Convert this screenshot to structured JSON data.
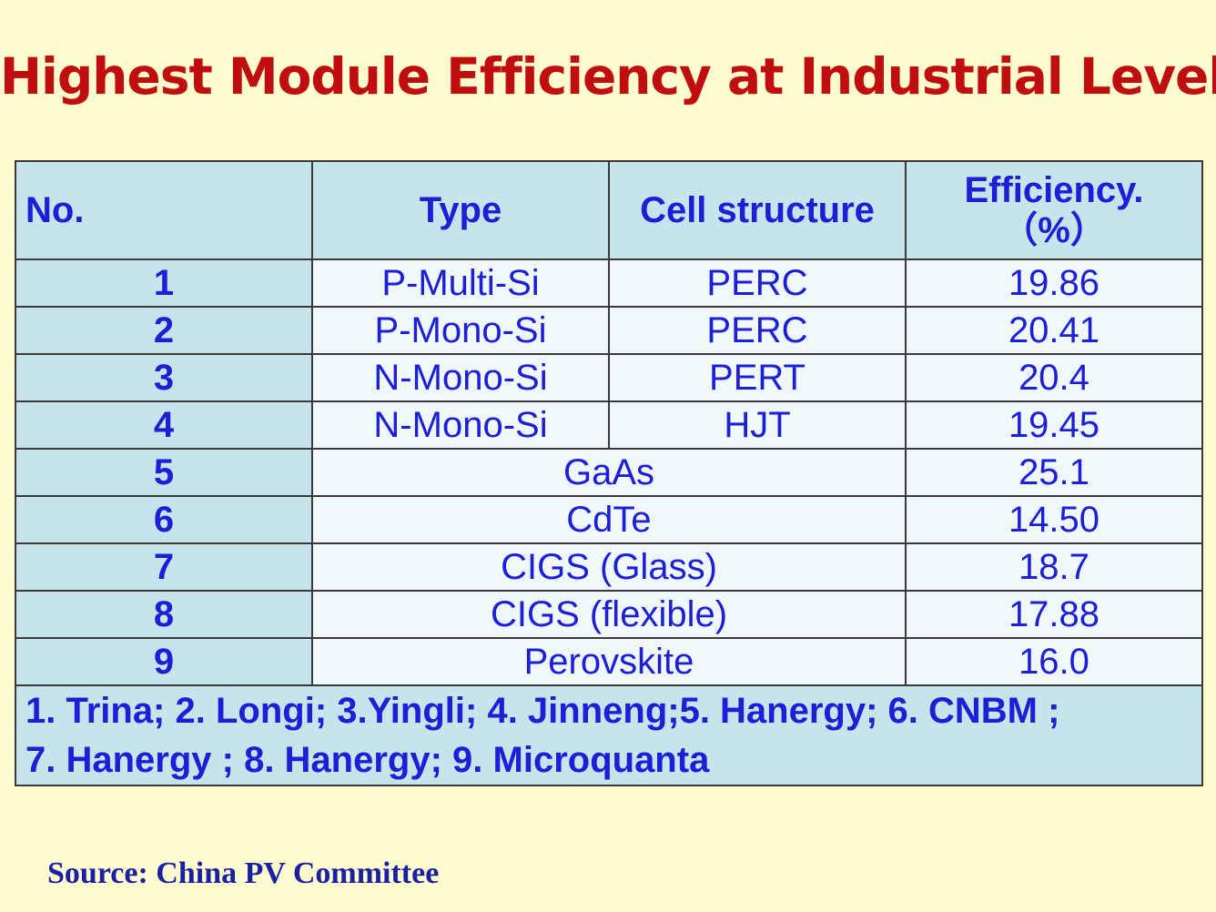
{
  "title": "Highest Module Efficiency at Industrial Level",
  "table": {
    "headers": {
      "no": "No.",
      "type": "Type",
      "cell_structure": "Cell structure",
      "efficiency_line1": "Efficiency.",
      "efficiency_line2": "（%）"
    },
    "rows": [
      {
        "no": "1",
        "type": "P-Multi-Si",
        "structure": "PERC",
        "efficiency": "19.86"
      },
      {
        "no": "2",
        "type": "P-Mono-Si",
        "structure": "PERC",
        "efficiency": "20.41"
      },
      {
        "no": "3",
        "type": "N-Mono-Si",
        "structure": "PERT",
        "efficiency": "20.4"
      },
      {
        "no": "4",
        "type": "N-Mono-Si",
        "structure": "HJT",
        "efficiency": "19.45"
      },
      {
        "no": "5",
        "type": "GaAs",
        "efficiency": "25.1"
      },
      {
        "no": "6",
        "type": "CdTe",
        "efficiency": "14.50"
      },
      {
        "no": "7",
        "type": "CIGS (Glass)",
        "efficiency": "18.7"
      },
      {
        "no": "8",
        "type": "CIGS (flexible)",
        "efficiency": "17.88"
      },
      {
        "no": "9",
        "type": "Perovskite",
        "efficiency": "16.0"
      }
    ],
    "note_line1": "1. Trina; 2. Longi; 3.Yingli; 4. Jinneng;5. Hanergy; 6. CNBM ;",
    "note_line2": "7. Hanergy ; 8. Hanergy; 9. Microquanta"
  },
  "source": "Source: China PV Committee",
  "colors": {
    "background": "#fffdd0",
    "title": "#c00d0d",
    "table_text": "#1b20d6",
    "header_fill": "#c6e4ec",
    "cell_fill": "#f0f8fb",
    "source_text": "#1b20a0"
  }
}
